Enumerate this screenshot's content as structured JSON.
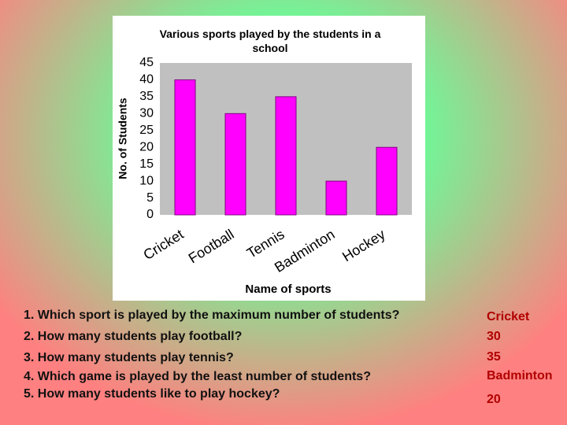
{
  "chart_data": {
    "type": "bar",
    "title": "Various sports played by the students in a school",
    "x_label": "Name of sports",
    "y_label": "No. of Students",
    "categories": [
      "Cricket",
      "Football",
      "Tennis",
      "Badminton",
      "Hockey"
    ],
    "values": [
      40,
      30,
      35,
      10,
      20
    ],
    "color": "#ff00ff",
    "ylim": [
      0,
      45
    ],
    "yticks": [
      0,
      5,
      10,
      15,
      20,
      25,
      30,
      35,
      40,
      45
    ],
    "grid": false
  },
  "questions": [
    {
      "question": "1. Which sport is played by the maximum number of students?",
      "answer": "Cricket"
    },
    {
      "question": "2. How many students play football?",
      "answer": "30"
    },
    {
      "question": "3. How many students play tennis?",
      "answer": "35"
    },
    {
      "question": "4. Which game is played by the least number of students?",
      "answer": "Badminton"
    },
    {
      "question": "5. How many students like to play hockey?",
      "answer": "20"
    }
  ]
}
